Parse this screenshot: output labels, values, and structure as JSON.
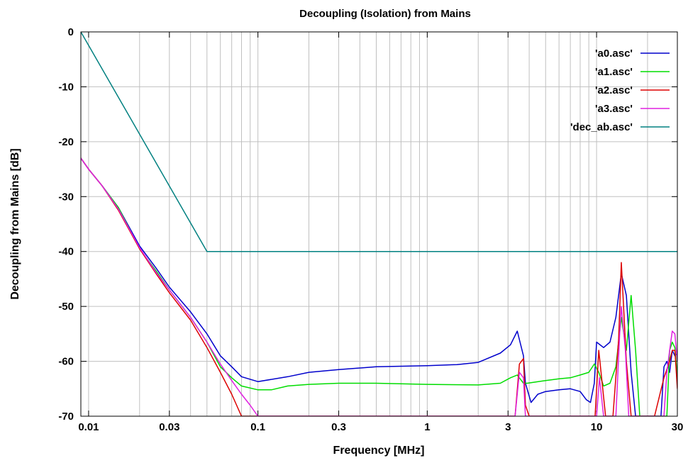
{
  "chart_data": {
    "type": "line",
    "title": "Decoupling (Isolation) from Mains",
    "xlabel": "Frequency [MHz]",
    "ylabel": "Decoupling from Mains [dB]",
    "xscale": "log",
    "xlim": [
      0.009,
      30
    ],
    "ylim": [
      -70,
      0
    ],
    "x_ticks": [
      {
        "value": 0.01,
        "label": "0.01"
      },
      {
        "value": 0.03,
        "label": "0.03"
      },
      {
        "value": 0.1,
        "label": "0.1"
      },
      {
        "value": 0.3,
        "label": "0.3"
      },
      {
        "value": 1,
        "label": "1"
      },
      {
        "value": 3,
        "label": "3"
      },
      {
        "value": 10,
        "label": "10"
      },
      {
        "value": 30,
        "label": "30"
      }
    ],
    "y_ticks": [
      {
        "value": 0,
        "label": "0"
      },
      {
        "value": -10,
        "label": "-10"
      },
      {
        "value": -20,
        "label": "-20"
      },
      {
        "value": -30,
        "label": "-30"
      },
      {
        "value": -40,
        "label": "-40"
      },
      {
        "value": -50,
        "label": "-50"
      },
      {
        "value": -60,
        "label": "-60"
      },
      {
        "value": -70,
        "label": "-70"
      }
    ],
    "grid": true,
    "legend_position": "top-right",
    "series": [
      {
        "name": "'a0.asc'",
        "color": "#0000cc",
        "points": [
          [
            0.009,
            -23
          ],
          [
            0.01,
            -25
          ],
          [
            0.012,
            -28
          ],
          [
            0.015,
            -32
          ],
          [
            0.02,
            -39
          ],
          [
            0.025,
            -43
          ],
          [
            0.03,
            -46.5
          ],
          [
            0.04,
            -51
          ],
          [
            0.05,
            -55
          ],
          [
            0.06,
            -59
          ],
          [
            0.07,
            -61
          ],
          [
            0.08,
            -62.8
          ],
          [
            0.1,
            -63.7
          ],
          [
            0.15,
            -62.8
          ],
          [
            0.2,
            -62
          ],
          [
            0.3,
            -61.5
          ],
          [
            0.5,
            -61
          ],
          [
            1,
            -60.8
          ],
          [
            1.5,
            -60.6
          ],
          [
            2,
            -60.2
          ],
          [
            2.7,
            -58.5
          ],
          [
            3.1,
            -57
          ],
          [
            3.4,
            -54.5
          ],
          [
            3.7,
            -59
          ],
          [
            3.8,
            -64
          ],
          [
            4.1,
            -67.5
          ],
          [
            4.5,
            -66
          ],
          [
            5,
            -65.5
          ],
          [
            6,
            -65.2
          ],
          [
            7,
            -65
          ],
          [
            8,
            -65.5
          ],
          [
            8.7,
            -67
          ],
          [
            9.2,
            -67.5
          ],
          [
            9.7,
            -64
          ],
          [
            10,
            -56.5
          ],
          [
            11,
            -57.5
          ],
          [
            12,
            -56.5
          ],
          [
            13,
            -52
          ],
          [
            14,
            -44
          ],
          [
            15,
            -48
          ],
          [
            16,
            -62
          ],
          [
            17,
            -70
          ],
          [
            24,
            -70
          ],
          [
            25,
            -61
          ],
          [
            26,
            -60
          ],
          [
            27,
            -62
          ],
          [
            28,
            -58
          ],
          [
            29,
            -59
          ],
          [
            30,
            -58.5
          ]
        ]
      },
      {
        "name": "'a1.asc'",
        "color": "#00dd00",
        "points": [
          [
            0.009,
            -23
          ],
          [
            0.01,
            -25
          ],
          [
            0.012,
            -28
          ],
          [
            0.015,
            -32
          ],
          [
            0.02,
            -39.5
          ],
          [
            0.025,
            -43.5
          ],
          [
            0.03,
            -47
          ],
          [
            0.04,
            -52
          ],
          [
            0.05,
            -56.5
          ],
          [
            0.06,
            -61
          ],
          [
            0.07,
            -63
          ],
          [
            0.08,
            -64.5
          ],
          [
            0.1,
            -65.2
          ],
          [
            0.12,
            -65.2
          ],
          [
            0.15,
            -64.5
          ],
          [
            0.2,
            -64.2
          ],
          [
            0.3,
            -64
          ],
          [
            0.5,
            -64
          ],
          [
            1,
            -64.2
          ],
          [
            2,
            -64.3
          ],
          [
            2.7,
            -64
          ],
          [
            3.1,
            -63
          ],
          [
            3.4,
            -62.5
          ],
          [
            3.7,
            -64
          ],
          [
            3.9,
            -64
          ],
          [
            4.3,
            -63.8
          ],
          [
            5,
            -63.5
          ],
          [
            6,
            -63.2
          ],
          [
            7,
            -63
          ],
          [
            8,
            -62.5
          ],
          [
            9,
            -62
          ],
          [
            9.7,
            -60.5
          ],
          [
            10.3,
            -62
          ],
          [
            11,
            -64.5
          ],
          [
            12,
            -64
          ],
          [
            13,
            -61
          ],
          [
            14,
            -52
          ],
          [
            15,
            -58
          ],
          [
            16,
            -48
          ],
          [
            17,
            -58
          ],
          [
            18,
            -70
          ],
          [
            26,
            -70
          ],
          [
            27,
            -58
          ],
          [
            28,
            -56.5
          ],
          [
            29,
            -57.5
          ],
          [
            30,
            -63
          ]
        ]
      },
      {
        "name": "'a2.asc'",
        "color": "#dd0000",
        "points": [
          [
            0.009,
            -23
          ],
          [
            0.01,
            -25
          ],
          [
            0.012,
            -28
          ],
          [
            0.015,
            -32.5
          ],
          [
            0.02,
            -39.5
          ],
          [
            0.025,
            -44
          ],
          [
            0.03,
            -47.5
          ],
          [
            0.04,
            -52.5
          ],
          [
            0.05,
            -57.5
          ],
          [
            0.06,
            -62
          ],
          [
            0.07,
            -66
          ],
          [
            0.08,
            -70
          ],
          [
            3.3,
            -70
          ],
          [
            3.5,
            -60.5
          ],
          [
            3.7,
            -59.5
          ],
          [
            3.8,
            -68
          ],
          [
            4,
            -70
          ],
          [
            9.8,
            -70
          ],
          [
            10.3,
            -58
          ],
          [
            11.3,
            -70
          ],
          [
            12.5,
            -70
          ],
          [
            13.5,
            -56
          ],
          [
            14,
            -42
          ],
          [
            15,
            -60
          ],
          [
            16,
            -70
          ],
          [
            22,
            -70
          ],
          [
            25,
            -63
          ],
          [
            27,
            -60
          ],
          [
            28,
            -58
          ],
          [
            29,
            -58
          ],
          [
            30,
            -65
          ]
        ]
      },
      {
        "name": "'a3.asc'",
        "color": "#e020e0",
        "points": [
          [
            0.009,
            -23
          ],
          [
            0.01,
            -25
          ],
          [
            0.012,
            -28
          ],
          [
            0.015,
            -32.3
          ],
          [
            0.02,
            -39.3
          ],
          [
            0.025,
            -43.8
          ],
          [
            0.03,
            -47
          ],
          [
            0.04,
            -52
          ],
          [
            0.05,
            -56.5
          ],
          [
            0.06,
            -60.5
          ],
          [
            0.07,
            -63.5
          ],
          [
            0.08,
            -66
          ],
          [
            0.09,
            -68
          ],
          [
            0.1,
            -70
          ],
          [
            3.3,
            -70
          ],
          [
            3.5,
            -62
          ],
          [
            3.7,
            -63
          ],
          [
            3.8,
            -70
          ],
          [
            10,
            -70
          ],
          [
            10.4,
            -63
          ],
          [
            11,
            -70
          ],
          [
            13,
            -70
          ],
          [
            13.7,
            -55
          ],
          [
            14,
            -50
          ],
          [
            14.8,
            -58
          ],
          [
            15.5,
            -70
          ],
          [
            25,
            -70
          ],
          [
            26,
            -62
          ],
          [
            27,
            -58
          ],
          [
            28,
            -54.5
          ],
          [
            29,
            -55
          ],
          [
            30,
            -60
          ]
        ]
      },
      {
        "name": "'dec_ab.asc'",
        "color": "#008080",
        "points": [
          [
            0.009,
            0
          ],
          [
            0.05,
            -40
          ],
          [
            30,
            -40
          ]
        ]
      }
    ]
  }
}
